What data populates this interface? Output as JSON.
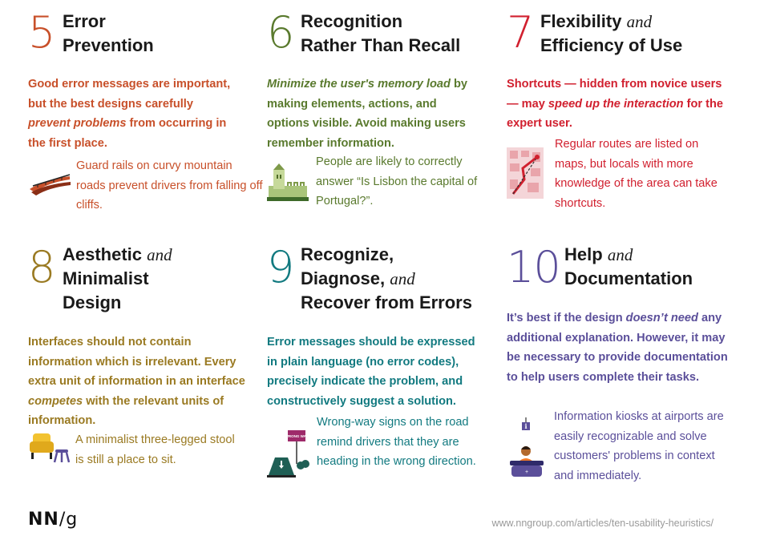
{
  "colors": {
    "h5": "#c8502a",
    "h6": "#5a7a2e",
    "h7": "#d1202f",
    "h8": "#9a7a22",
    "h9": "#127a80",
    "h10": "#5b4f9a"
  },
  "heuristics": [
    {
      "number": "5",
      "title_l1": "Error",
      "title_l2": "Prevention",
      "desc_a": "Good error messages are important, but the best designs carefully ",
      "desc_i": "prevent problems",
      "desc_b": " from occurring in the first place.",
      "example": "Guard rails on curvy mountain roads prevent drivers from falling off cliffs.",
      "icon": "guard-rail-road-icon"
    },
    {
      "number": "6",
      "title_l1": "Recognition",
      "title_l2": "Rather Than Recall",
      "desc_i": "Minimize the user's memory load",
      "desc_b": " by making elements, actions, and options visible. Avoid making users remember information.",
      "example": "People are likely to correctly answer “Is Lisbon the capital of Portugal?”.",
      "icon": "lisbon-tower-icon"
    },
    {
      "number": "7",
      "title_l1": "Flexibility",
      "title_and": "and",
      "title_l2": "Efficiency of Use",
      "desc_a": "Shortcuts — hidden from novice users — may ",
      "desc_i": "speed up the interaction",
      "desc_b": " for the expert user.",
      "example": "Regular routes are listed on maps, but locals with more knowledge of the area can take shortcuts.",
      "icon": "map-icon"
    },
    {
      "number": "8",
      "title_l1": "Aesthetic",
      "title_and": "and",
      "title_l2": "Minimalist",
      "title_l3": "Design",
      "desc_a": "Interfaces should not contain information which is irrelevant. Every extra unit of information in an interface ",
      "desc_i": "competes",
      "desc_b": " with the relevant units of information.",
      "example": "A minimalist three-legged stool is still a place to sit.",
      "icon": "armchair-stool-icon"
    },
    {
      "number": "9",
      "title_l1": "Recognize,",
      "title_l2": "Diagnose,",
      "title_and": "and",
      "title_l3": "Recover from Errors",
      "desc": "Error messages should be expressed in plain language (no error codes), precisely indicate the problem, and constructively suggest a solution.",
      "example": "Wrong-way signs on the road remind drivers that they are heading in the wrong direction.",
      "sign_text": "WRONG WAY",
      "icon": "wrong-way-sign-icon"
    },
    {
      "number": "10",
      "title_l1": "Help",
      "title_and": "and",
      "title_l2": "Documentation",
      "desc_a": "It’s best if the design ",
      "desc_i": "doesn’t need",
      "desc_b": " any additional explanation. However, it may be necessary to provide documentation to help users complete their tasks.",
      "example": "Information kiosks at airports are easily recognizable and solve customers' problems in context and immediately.",
      "icon": "info-kiosk-icon"
    }
  ],
  "footer": {
    "logo_a": "NN",
    "logo_slash": "/",
    "logo_b": "g",
    "url": "www.nngroup.com/articles/ten-usability-heuristics/"
  }
}
